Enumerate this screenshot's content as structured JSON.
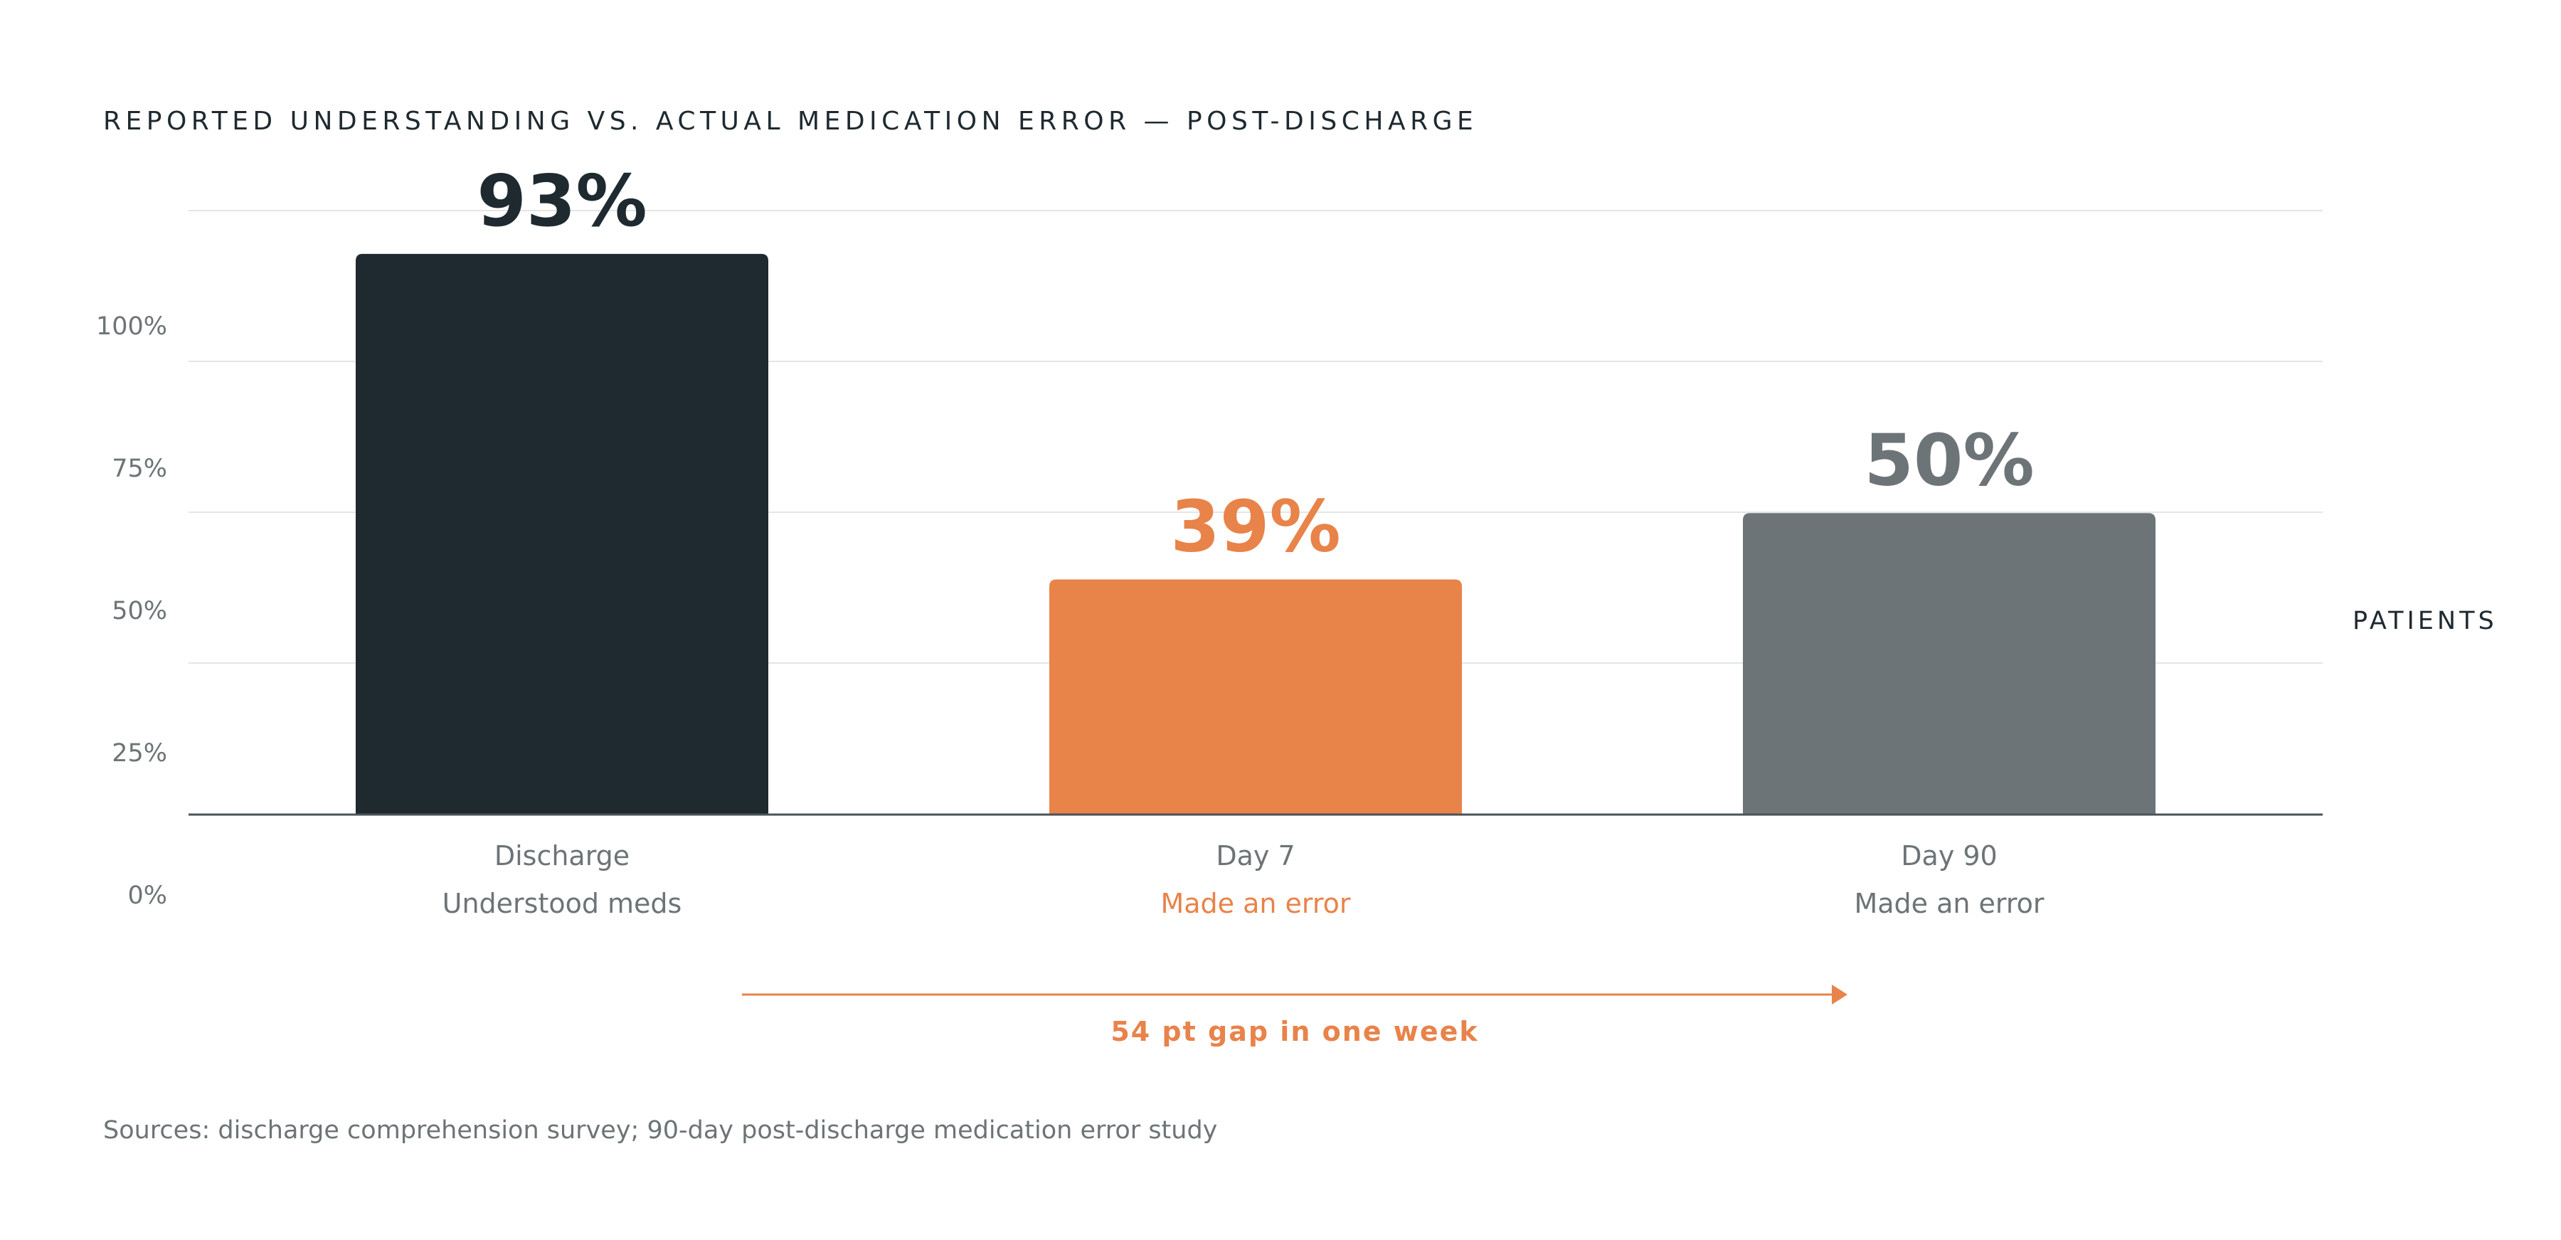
{
  "chart_data": {
    "type": "bar",
    "title": "REPORTED UNDERSTANDING VS. ACTUAL MEDICATION ERROR — POST-DISCHARGE",
    "categories": [
      "Discharge",
      "Day 7",
      "Day 90"
    ],
    "sublabels": [
      "Understood meds",
      "Made an error",
      "Made an error"
    ],
    "values": [
      93,
      39,
      50
    ],
    "value_labels": [
      "93%",
      "39%",
      "50%"
    ],
    "colors": [
      "#1e2a30",
      "#e8834a",
      "#6d7477"
    ],
    "sublabel_colors": [
      "#6d7477",
      "#e8834a",
      "#6d7477"
    ],
    "value_label_colors": [
      "#1e2a30",
      "#e8834a",
      "#6d7477"
    ],
    "ylim": [
      0,
      100
    ],
    "yticks": [
      0,
      25,
      50,
      75,
      100
    ],
    "ytick_labels": [
      "0%",
      "25%",
      "50%",
      "75%",
      "100%"
    ],
    "ylabel": "PATIENTS",
    "grid": true,
    "annotation": {
      "text": "54 pt gap in one week",
      "color": "#e8834a"
    },
    "source": "Sources: discharge comprehension survey; 90-day post-discharge medication error study"
  }
}
